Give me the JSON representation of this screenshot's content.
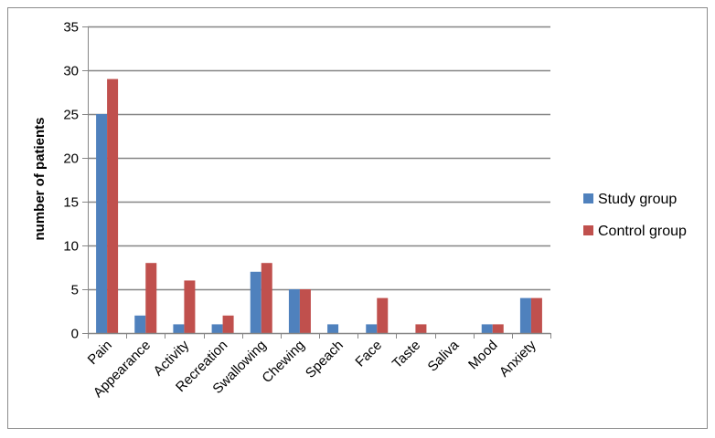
{
  "chart_data": {
    "type": "bar",
    "title": "",
    "xlabel": "",
    "ylabel": "number of patients",
    "ylim": [
      0,
      35
    ],
    "yticks": [
      0,
      5,
      10,
      15,
      20,
      25,
      30,
      35
    ],
    "grid": true,
    "legend_position": "right",
    "categories": [
      "Pain",
      "Appearance",
      "Activity",
      "Recreation",
      "Swallowing",
      "Chewing",
      "Speach",
      "Face",
      "Taste",
      "Saliva",
      "Mood",
      "Anxiety"
    ],
    "series": [
      {
        "name": "Study group",
        "color": "#4F81BD",
        "values": [
          25,
          2,
          1,
          1,
          7,
          5,
          1,
          1,
          0,
          0,
          1,
          4
        ]
      },
      {
        "name": "Control group",
        "color": "#C0504D",
        "values": [
          29,
          8,
          6,
          2,
          8,
          5,
          0,
          4,
          1,
          0,
          1,
          4
        ]
      }
    ],
    "colors": {
      "grid": "#868686",
      "axis": "#868686",
      "frame": "#8c8c8c"
    }
  }
}
